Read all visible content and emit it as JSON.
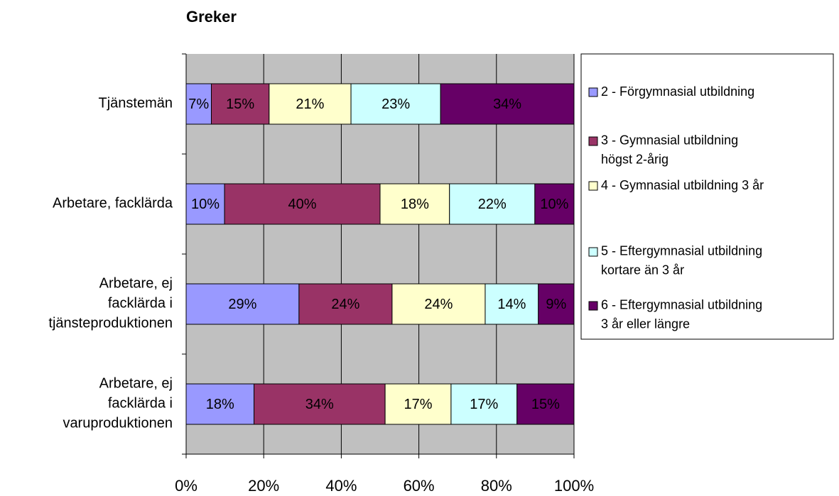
{
  "chart_data": {
    "type": "stacked-barh",
    "title": "Greker",
    "categories": [
      "Tjänstemän",
      "Arbetare, facklärda",
      "Arbetare, ej facklärda i tjänsteproduktionen",
      "Arbetare, ej facklärda i varuproduktionen"
    ],
    "series": [
      {
        "name": "2 - Förgymnasial utbildning",
        "color": "#9999ff",
        "values": [
          6.5,
          9.9,
          29.1,
          17.5
        ],
        "value_labels": [
          "7%",
          "10%",
          "29%",
          "18%"
        ]
      },
      {
        "name": "3 - Gymnasial utbildning högst 2-årig",
        "color": "#993366",
        "values": [
          14.9,
          40.1,
          24.0,
          33.8
        ],
        "value_labels": [
          "15%",
          "40%",
          "24%",
          "34%"
        ]
      },
      {
        "name": "4 - Gymnasial utbildning 3 år",
        "color": "#ffffcc",
        "values": [
          21.1,
          17.9,
          24.0,
          17.0
        ],
        "value_labels": [
          "21%",
          "18%",
          "24%",
          "17%"
        ]
      },
      {
        "name": "5 - Eftergymnasial utbildning kortare än 3 år",
        "color": "#ccffff",
        "values": [
          23.1,
          22.0,
          13.7,
          17.0
        ],
        "value_labels": [
          "23%",
          "22%",
          "14%",
          "17%"
        ]
      },
      {
        "name": "6 - Eftergymnasial utbildning 3 år eller längre",
        "color": "#660066",
        "values": [
          34.4,
          10.1,
          9.2,
          14.7
        ],
        "value_labels": [
          "34%",
          "10%",
          "9%",
          "15%"
        ]
      }
    ],
    "xlim": [
      0,
      100
    ],
    "xticks": [
      {
        "value": 0,
        "label": "0%"
      },
      {
        "value": 20,
        "label": "20%"
      },
      {
        "value": 40,
        "label": "40%"
      },
      {
        "value": 60,
        "label": "60%"
      },
      {
        "value": 80,
        "label": "80%"
      },
      {
        "value": 100,
        "label": "100%"
      }
    ],
    "grid": true,
    "legend": "right"
  }
}
